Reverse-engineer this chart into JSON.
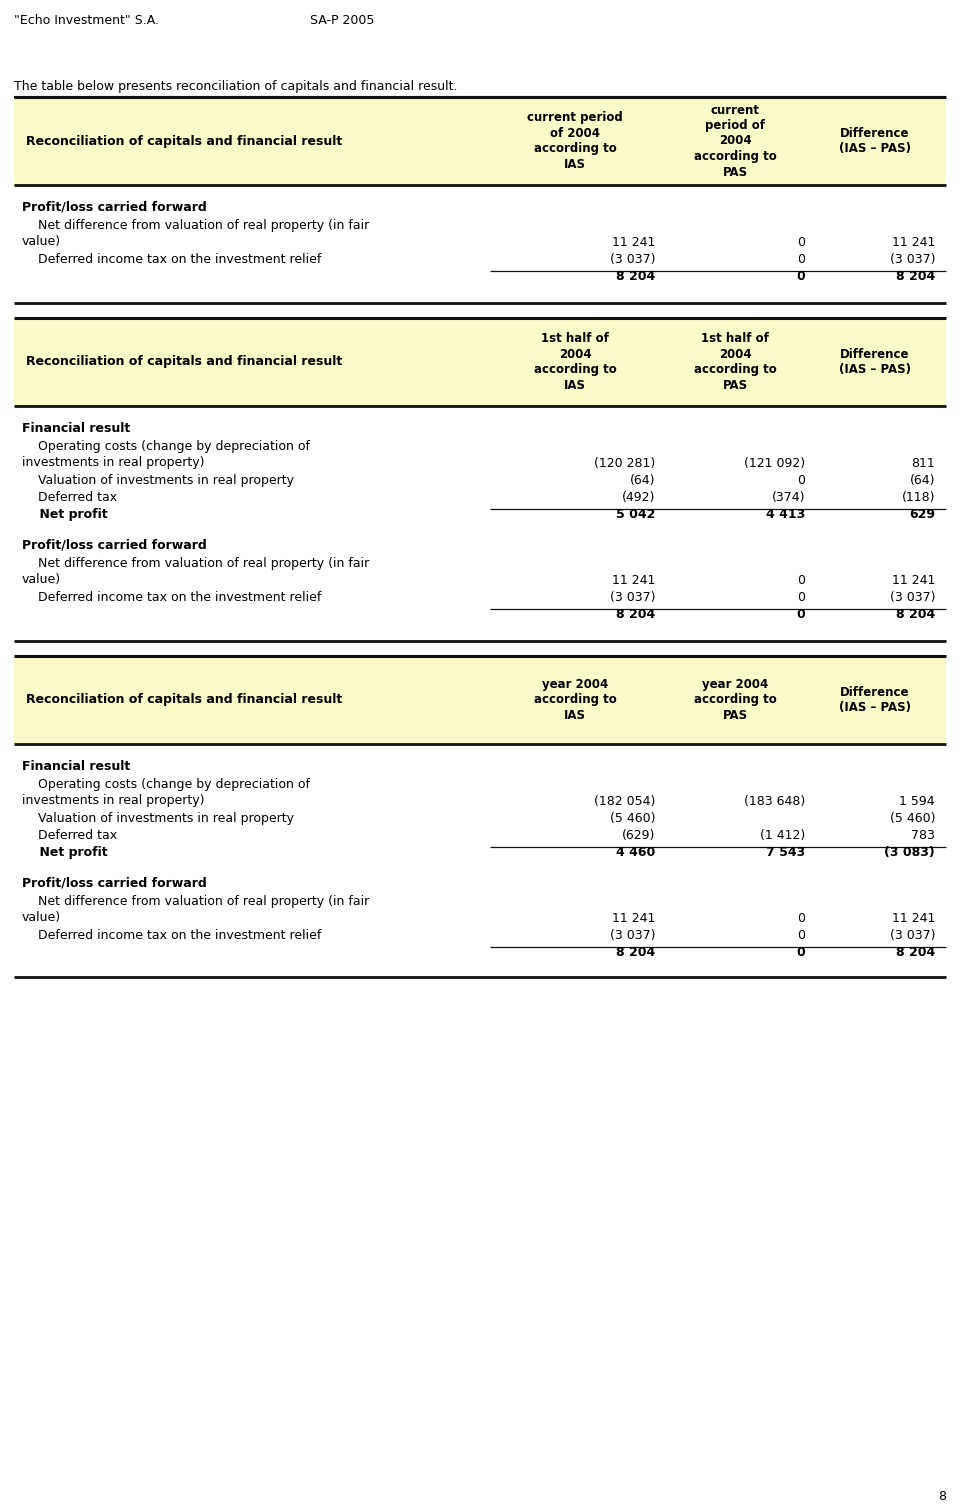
{
  "header_left": "\"Echo Investment\" S.A.",
  "header_right": "SA-P 2005",
  "intro": "The table below presents reconciliation of capitals and financial result.",
  "page_num": "8",
  "header_bg": "#fafac8",
  "TL": 14,
  "TR": 946,
  "LR": 490,
  "C1R": 660,
  "C2R": 810,
  "C3R": 940,
  "tables": [
    {
      "col1": "current period\nof 2004\naccording to\nIAS",
      "col2": "current\nperiod of\n2004\naccording to\nPAS",
      "col3": "Difference\n(IAS – PAS)",
      "sections": [
        {
          "title": "Profit/loss carried forward",
          "rows": [
            {
              "label": "    Net difference from valuation of real property (in fair\nvalue)",
              "v1": "11 241",
              "v2": "0",
              "v3": "11 241",
              "bold": false,
              "underline": false
            },
            {
              "label": "    Deferred income tax on the investment relief",
              "v1": "(3 037)",
              "v2": "0",
              "v3": "(3 037)",
              "bold": false,
              "underline": true
            },
            {
              "label": "",
              "v1": "8 204",
              "v2": "0",
              "v3": "8 204",
              "bold": true,
              "underline": false
            }
          ]
        }
      ]
    },
    {
      "col1": "1st half of\n2004\naccording to\nIAS",
      "col2": "1st half of\n2004\naccording to\nPAS",
      "col3": "Difference\n(IAS – PAS)",
      "sections": [
        {
          "title": "Financial result",
          "rows": [
            {
              "label": "    Operating costs (change by depreciation of\ninvestments in real property)",
              "v1": "(120 281)",
              "v2": "(121 092)",
              "v3": "811",
              "bold": false,
              "underline": false
            },
            {
              "label": "    Valuation of investments in real property",
              "v1": "(64)",
              "v2": "0",
              "v3": "(64)",
              "bold": false,
              "underline": false
            },
            {
              "label": "    Deferred tax",
              "v1": "(492)",
              "v2": "(374)",
              "v3": "(118)",
              "bold": false,
              "underline": true
            },
            {
              "label": "    Net profit",
              "v1": "5 042",
              "v2": "4 413",
              "v3": "629",
              "bold": true,
              "underline": false
            }
          ]
        },
        {
          "title": "Profit/loss carried forward",
          "rows": [
            {
              "label": "    Net difference from valuation of real property (in fair\nvalue)",
              "v1": "11 241",
              "v2": "0",
              "v3": "11 241",
              "bold": false,
              "underline": false
            },
            {
              "label": "    Deferred income tax on the investment relief",
              "v1": "(3 037)",
              "v2": "0",
              "v3": "(3 037)",
              "bold": false,
              "underline": true
            },
            {
              "label": "",
              "v1": "8 204",
              "v2": "0",
              "v3": "8 204",
              "bold": true,
              "underline": false
            }
          ]
        }
      ]
    },
    {
      "col1": "year 2004\naccording to\nIAS",
      "col2": "year 2004\naccording to\nPAS",
      "col3": "Difference\n(IAS – PAS)",
      "sections": [
        {
          "title": "Financial result",
          "rows": [
            {
              "label": "    Operating costs (change by depreciation of\ninvestments in real property)",
              "v1": "(182 054)",
              "v2": "(183 648)",
              "v3": "1 594",
              "bold": false,
              "underline": false
            },
            {
              "label": "    Valuation of investments in real property",
              "v1": "(5 460)",
              "v2": "",
              "v3": "(5 460)",
              "bold": false,
              "underline": false
            },
            {
              "label": "    Deferred tax",
              "v1": "(629)",
              "v2": "(1 412)",
              "v3": "783",
              "bold": false,
              "underline": true
            },
            {
              "label": "    Net profit",
              "v1": "4 460",
              "v2": "7 543",
              "v3": "(3 083)",
              "bold": true,
              "underline": false
            }
          ]
        },
        {
          "title": "Profit/loss carried forward",
          "rows": [
            {
              "label": "    Net difference from valuation of real property (in fair\nvalue)",
              "v1": "11 241",
              "v2": "0",
              "v3": "11 241",
              "bold": false,
              "underline": false
            },
            {
              "label": "    Deferred income tax on the investment relief",
              "v1": "(3 037)",
              "v2": "0",
              "v3": "(3 037)",
              "bold": false,
              "underline": true
            },
            {
              "label": "",
              "v1": "8 204",
              "v2": "0",
              "v3": "8 204",
              "bold": true,
              "underline": false
            }
          ]
        }
      ]
    }
  ]
}
